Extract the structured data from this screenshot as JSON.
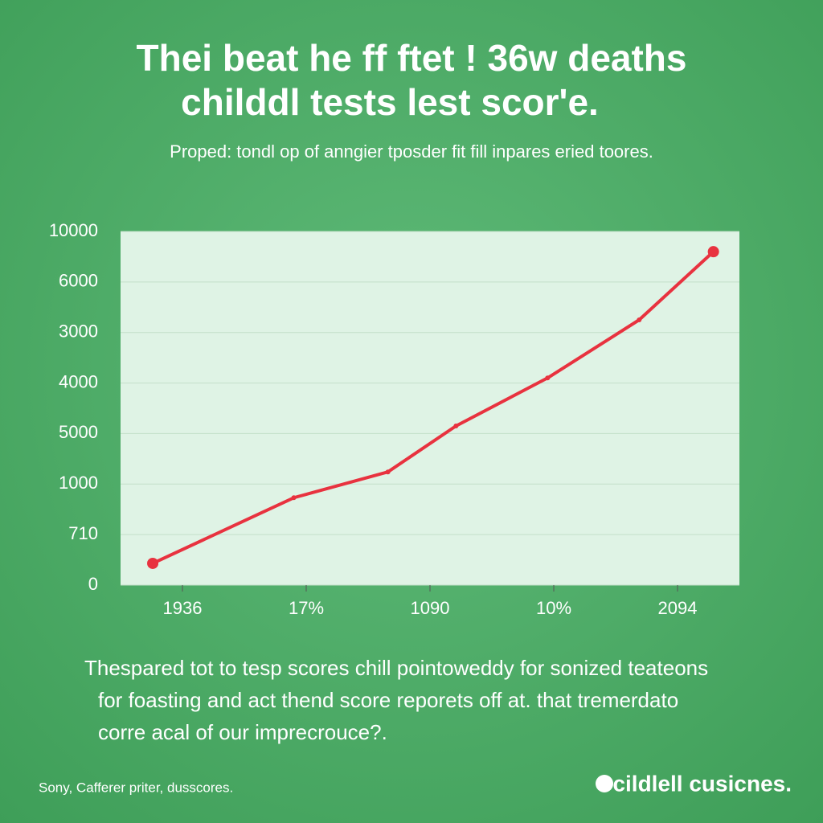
{
  "chart_data": {
    "type": "line",
    "title": [
      "Thei beat he ff ftet ! 36w deaths",
      "childdl tests lest scor'e."
    ],
    "subtitle": "Proped: tondl op of anngier tposder fit fill inpares eried toores.",
    "x": [
      0.26,
      1.4,
      2.16,
      2.71,
      3.45,
      4.19,
      4.79
    ],
    "xlim": [
      0,
      5
    ],
    "xticks": [
      {
        "value": 0.5,
        "label": "1936"
      },
      {
        "value": 1.5,
        "label": "17%"
      },
      {
        "value": 2.5,
        "label": "1090"
      },
      {
        "value": 3.5,
        "label": "10%"
      },
      {
        "value": 4.5,
        "label": "2094"
      }
    ],
    "ylim": [
      0,
      7
    ],
    "yticks": [
      {
        "value": 0,
        "label": "0"
      },
      {
        "value": 1,
        "label": "710"
      },
      {
        "value": 2,
        "label": "1000"
      },
      {
        "value": 3,
        "label": "5000"
      },
      {
        "value": 4,
        "label": "4000"
      },
      {
        "value": 5,
        "label": "3000"
      },
      {
        "value": 6,
        "label": "6000"
      },
      {
        "value": 7,
        "label": "10000"
      }
    ],
    "series": [
      {
        "color": "#e8323f",
        "values": [
          0.43,
          1.73,
          2.24,
          3.15,
          4.1,
          5.25,
          6.6
        ]
      }
    ],
    "grid": true,
    "body": [
      "Thespared tot to tesp scores chill pointoweddy for sonized teateons",
      "for foasting and act thend score reporets off at. that tremerdato",
      "corre acal of our imprecrouce?."
    ],
    "footer": "Sony, Cafferer priter, dusscores.",
    "brand": "cildlell cusicnes."
  }
}
